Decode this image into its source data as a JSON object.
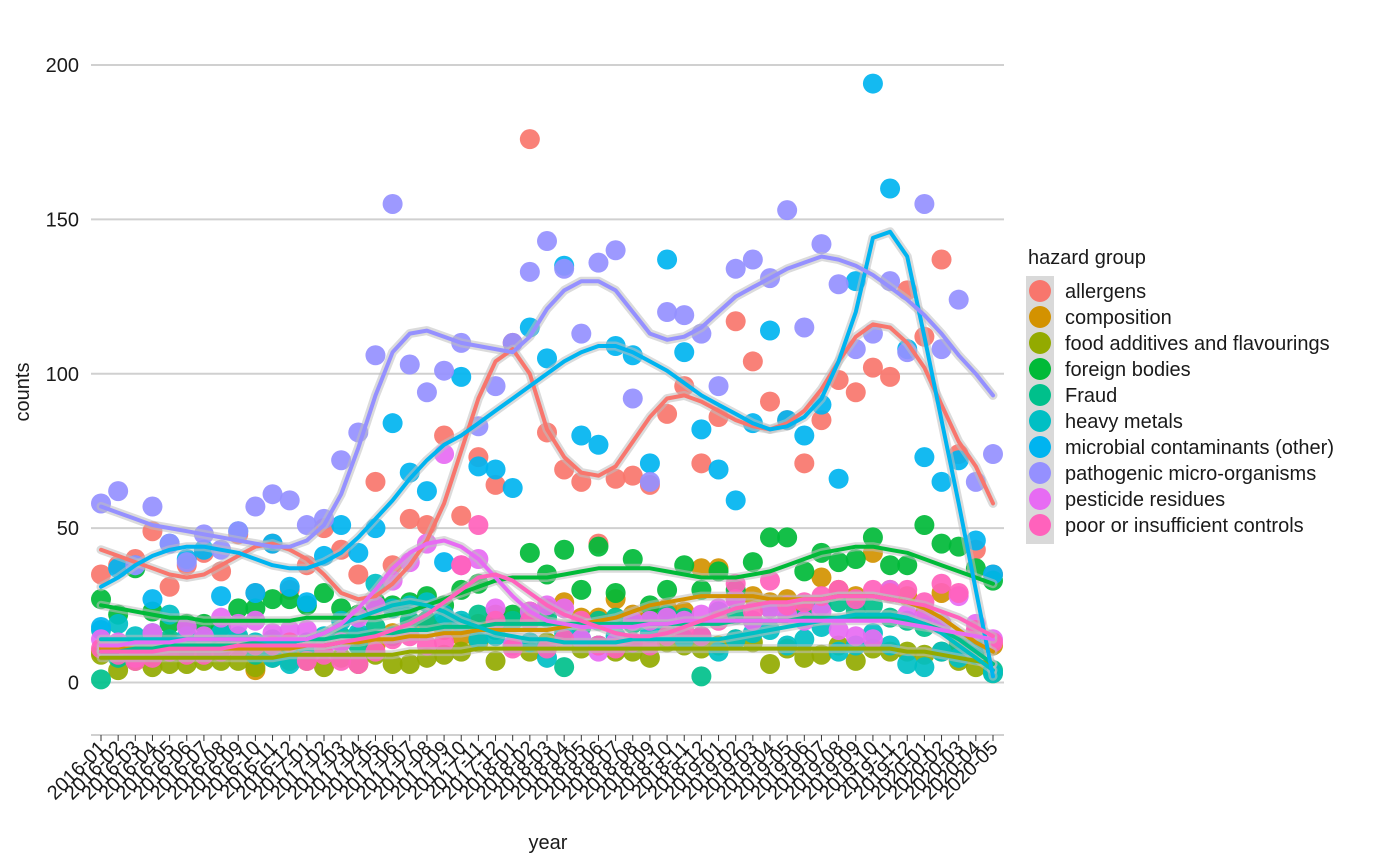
{
  "chart_data": {
    "type": "scatter",
    "subtype": "scatter with smoothed trend lines",
    "xlabel": "year",
    "ylabel": "counts",
    "yticks": [
      0,
      50,
      100,
      150,
      200
    ],
    "ylim": [
      -17,
      212
    ],
    "grid": "horizontal major lines",
    "legend_title": "hazard group",
    "legend_position": "right",
    "x": [
      "2016-01",
      "2016-02",
      "2016-03",
      "2016-04",
      "2016-05",
      "2016-06",
      "2016-07",
      "2016-08",
      "2016-09",
      "2016-10",
      "2016-11",
      "2016-12",
      "2017-01",
      "2017-02",
      "2017-03",
      "2017-04",
      "2017-05",
      "2017-06",
      "2017-07",
      "2017-08",
      "2017-09",
      "2017-10",
      "2017-11",
      "2017-12",
      "2018-01",
      "2018-02",
      "2018-03",
      "2018-04",
      "2018-05",
      "2018-06",
      "2018-07",
      "2018-08",
      "2018-09",
      "2018-10",
      "2018-11",
      "2018-12",
      "2019-01",
      "2019-02",
      "2019-03",
      "2019-04",
      "2019-05",
      "2019-06",
      "2019-07",
      "2019-08",
      "2019-09",
      "2019-10",
      "2019-11",
      "2019-12",
      "2020-01",
      "2020-02",
      "2020-03",
      "2020-04",
      "2020-05"
    ],
    "series": [
      {
        "name": "allergens",
        "color": "#F8766D",
        "values": [
          35,
          38,
          40,
          49,
          31,
          38,
          42,
          36,
          48,
          29,
          45,
          30,
          38,
          50,
          43,
          35,
          65,
          38,
          53,
          51,
          80,
          54,
          73,
          64,
          110,
          176,
          81,
          69,
          65,
          45,
          66,
          67,
          64,
          87,
          96,
          71,
          86,
          117,
          104,
          91,
          85,
          71,
          85,
          98,
          94,
          102,
          99,
          127,
          112,
          137,
          74,
          43,
          35
        ],
        "trend": [
          43,
          41,
          39,
          37,
          35,
          34,
          35,
          38,
          41,
          44,
          45,
          43,
          40,
          35,
          29,
          27,
          28,
          32,
          38,
          46,
          58,
          75,
          92,
          104,
          108,
          100,
          82,
          73,
          68,
          67,
          70,
          78,
          86,
          92,
          93,
          91,
          88,
          85,
          83,
          82,
          84,
          88,
          95,
          104,
          112,
          116,
          115,
          110,
          102,
          90,
          78,
          70,
          58
        ]
      },
      {
        "name": "composition",
        "color": "#D39200",
        "values": [
          10,
          12,
          11,
          9,
          13,
          11,
          10,
          12,
          14,
          4,
          13,
          11,
          10,
          14,
          13,
          15,
          12,
          16,
          18,
          20,
          17,
          15,
          19,
          22,
          20,
          23,
          24,
          26,
          21,
          21,
          27,
          22,
          22,
          24,
          23,
          37,
          37,
          27,
          28,
          26,
          27,
          25,
          34,
          30,
          28,
          42,
          30,
          28,
          22,
          29,
          13,
          10,
          12
        ],
        "trend": [
          11,
          11,
          11,
          11,
          11,
          11,
          11,
          11,
          11,
          11,
          11,
          11,
          12,
          12,
          13,
          13,
          14,
          14,
          15,
          15,
          16,
          16,
          17,
          17,
          17,
          17,
          17,
          18,
          19,
          20,
          21,
          23,
          25,
          26,
          27,
          28,
          28,
          28,
          28,
          27,
          27,
          27,
          27,
          28,
          28,
          28,
          27,
          26,
          24,
          21,
          17,
          13,
          10
        ]
      },
      {
        "name": "food additives and flavourings",
        "color": "#93AA00",
        "values": [
          9,
          4,
          7,
          5,
          6,
          6,
          7,
          7,
          7,
          5,
          8,
          7,
          7,
          5,
          8,
          6,
          9,
          6,
          6,
          8,
          9,
          10,
          13,
          7,
          12,
          10,
          13,
          14,
          11,
          12,
          10,
          10,
          8,
          13,
          12,
          11,
          12,
          14,
          13,
          6,
          11,
          8,
          9,
          12,
          7,
          11,
          10,
          10,
          9,
          10,
          7,
          5,
          3
        ],
        "trend": [
          8,
          8,
          8,
          8,
          8,
          8,
          8,
          8,
          8,
          8,
          8,
          9,
          9,
          9,
          9,
          9,
          9,
          9,
          10,
          10,
          10,
          10,
          11,
          11,
          11,
          11,
          11,
          11,
          11,
          11,
          11,
          11,
          11,
          11,
          11,
          11,
          11,
          11,
          11,
          11,
          11,
          11,
          11,
          11,
          11,
          11,
          11,
          10,
          10,
          9,
          8,
          7,
          6
        ]
      },
      {
        "name": "foreign bodies",
        "color": "#00BA38",
        "values": [
          27,
          22,
          37,
          23,
          19,
          19,
          19,
          18,
          24,
          24,
          27,
          27,
          25,
          29,
          24,
          22,
          26,
          25,
          26,
          28,
          25,
          30,
          32,
          17,
          22,
          42,
          35,
          43,
          30,
          44,
          29,
          40,
          25,
          30,
          38,
          30,
          36,
          30,
          39,
          47,
          47,
          36,
          42,
          39,
          40,
          47,
          38,
          38,
          51,
          45,
          44,
          37,
          33
        ],
        "trend": [
          25,
          24,
          23,
          22,
          21,
          21,
          20,
          20,
          20,
          20,
          20,
          20,
          21,
          21,
          21,
          21,
          21,
          22,
          23,
          25,
          27,
          29,
          31,
          33,
          34,
          34,
          34,
          35,
          36,
          37,
          37,
          37,
          37,
          36,
          35,
          34,
          34,
          34,
          35,
          36,
          38,
          40,
          42,
          43,
          44,
          44,
          43,
          42,
          40,
          38,
          36,
          34,
          32
        ]
      },
      {
        "name": "Fraud",
        "color": "#00C08B",
        "values": [
          1,
          8,
          10,
          12,
          14,
          11,
          10,
          11,
          13,
          9,
          14,
          12,
          13,
          14,
          15,
          12,
          18,
          15,
          20,
          20,
          19,
          19,
          22,
          18,
          20,
          22,
          21,
          5,
          18,
          20,
          21,
          19,
          20,
          22,
          21,
          2,
          23,
          22,
          20,
          24,
          22,
          21,
          25,
          26,
          23,
          25,
          21,
          20,
          18,
          19,
          12,
          9,
          4
        ],
        "trend": [
          10,
          10,
          11,
          11,
          12,
          12,
          12,
          12,
          12,
          13,
          13,
          13,
          14,
          14,
          15,
          15,
          16,
          16,
          17,
          17,
          18,
          18,
          18,
          19,
          19,
          19,
          19,
          19,
          19,
          19,
          19,
          19,
          19,
          19,
          19,
          19,
          19,
          20,
          20,
          20,
          20,
          21,
          21,
          21,
          21,
          21,
          21,
          20,
          19,
          17,
          14,
          10,
          6
        ]
      },
      {
        "name": "heavy metals",
        "color": "#00BFC4",
        "values": [
          17,
          19,
          15,
          16,
          22,
          15,
          14,
          16,
          15,
          13,
          8,
          6,
          12,
          15,
          20,
          16,
          32,
          24,
          25,
          26,
          22,
          20,
          14,
          15,
          12,
          13,
          8,
          16,
          14,
          12,
          15,
          13,
          16,
          18,
          14,
          15,
          10,
          14,
          16,
          17,
          12,
          14,
          18,
          10,
          12,
          16,
          12,
          6,
          5,
          10,
          8,
          12,
          3
        ],
        "trend": [
          14,
          14,
          14,
          14,
          14,
          14,
          14,
          14,
          14,
          14,
          13,
          13,
          14,
          16,
          19,
          21,
          23,
          25,
          26,
          25,
          23,
          20,
          18,
          16,
          15,
          14,
          14,
          13,
          13,
          13,
          13,
          14,
          14,
          14,
          14,
          14,
          14,
          15,
          16,
          17,
          18,
          19,
          20,
          21,
          22,
          22,
          22,
          21,
          19,
          16,
          12,
          8,
          4
        ]
      },
      {
        "name": "microbial contaminants (other)",
        "color": "#00B4F0",
        "values": [
          18,
          37,
          38,
          27,
          45,
          40,
          43,
          28,
          49,
          29,
          45,
          31,
          26,
          41,
          51,
          42,
          50,
          84,
          68,
          62,
          39,
          99,
          70,
          69,
          63,
          115,
          105,
          135,
          80,
          77,
          109,
          106,
          71,
          137,
          107,
          82,
          69,
          59,
          84,
          114,
          85,
          80,
          90,
          66,
          130,
          194,
          160,
          108,
          73,
          65,
          72,
          46,
          35
        ],
        "trend": [
          31,
          34,
          38,
          41,
          43,
          44,
          44,
          43,
          42,
          40,
          38,
          37,
          37,
          39,
          42,
          47,
          53,
          59,
          66,
          72,
          77,
          80,
          84,
          88,
          92,
          96,
          100,
          104,
          107,
          109,
          109,
          107,
          104,
          101,
          97,
          93,
          90,
          87,
          84,
          82,
          83,
          86,
          92,
          104,
          120,
          144,
          146,
          138,
          112,
          85,
          58,
          30,
          2
        ]
      },
      {
        "name": "pathogenic micro-organisms",
        "color": "#9590FF",
        "values": [
          58,
          62,
          38,
          57,
          45,
          39,
          48,
          43,
          49,
          57,
          61,
          59,
          51,
          53,
          72,
          81,
          106,
          155,
          103,
          94,
          101,
          110,
          83,
          96,
          110,
          133,
          143,
          134,
          113,
          136,
          140,
          92,
          65,
          120,
          119,
          113,
          96,
          134,
          137,
          131,
          153,
          115,
          142,
          129,
          108,
          113,
          130,
          107,
          155,
          108,
          124,
          65,
          74
        ],
        "trend": [
          57,
          55,
          53,
          51,
          50,
          49,
          48,
          47,
          46,
          45,
          44,
          44,
          46,
          51,
          61,
          76,
          93,
          107,
          113,
          114,
          112,
          110,
          109,
          108,
          107,
          112,
          121,
          127,
          130,
          130,
          127,
          120,
          113,
          111,
          112,
          115,
          120,
          125,
          128,
          131,
          134,
          136,
          138,
          137,
          135,
          132,
          128,
          124,
          119,
          113,
          106,
          100,
          93
        ]
      },
      {
        "name": "pesticide residues",
        "color": "#E76BF3",
        "values": [
          14,
          13,
          8,
          16,
          10,
          18,
          15,
          21,
          19,
          20,
          16,
          17,
          17,
          11,
          13,
          21,
          25,
          33,
          39,
          45,
          74,
          38,
          40,
          24,
          12,
          23,
          25,
          24,
          14,
          10,
          13,
          20,
          20,
          21,
          20,
          22,
          24,
          27,
          20,
          24,
          22,
          20,
          23,
          17,
          15,
          14,
          30,
          22,
          21,
          19,
          28,
          19,
          14
        ],
        "trend": [
          12,
          12,
          13,
          13,
          13,
          14,
          14,
          14,
          14,
          14,
          14,
          14,
          14,
          16,
          19,
          24,
          30,
          37,
          42,
          45,
          46,
          44,
          40,
          34,
          28,
          23,
          20,
          19,
          18,
          18,
          18,
          18,
          19,
          19,
          20,
          20,
          20,
          20,
          20,
          20,
          20,
          20,
          20,
          20,
          20,
          20,
          20,
          19,
          18,
          17,
          16,
          15,
          14
        ]
      },
      {
        "name": "poor or insufficient controls",
        "color": "#FF62BC",
        "values": [
          11,
          9,
          7,
          8,
          10,
          9,
          9,
          10,
          11,
          12,
          12,
          13,
          7,
          9,
          7,
          6,
          10,
          14,
          15,
          12,
          13,
          38,
          51,
          20,
          11,
          20,
          11,
          14,
          20,
          12,
          11,
          13,
          12,
          15,
          17,
          15,
          20,
          32,
          23,
          33,
          25,
          26,
          28,
          30,
          27,
          30,
          29,
          30,
          26,
          32,
          29,
          17,
          13
        ],
        "trend": [
          10,
          10,
          10,
          10,
          11,
          11,
          11,
          11,
          12,
          12,
          12,
          12,
          12,
          12,
          13,
          14,
          15,
          17,
          19,
          22,
          26,
          30,
          34,
          35,
          33,
          29,
          25,
          22,
          20,
          18,
          16,
          15,
          15,
          16,
          18,
          20,
          22,
          24,
          25,
          26,
          26,
          27,
          27,
          28,
          28,
          28,
          27,
          26,
          25,
          23,
          21,
          18,
          15
        ]
      }
    ]
  }
}
